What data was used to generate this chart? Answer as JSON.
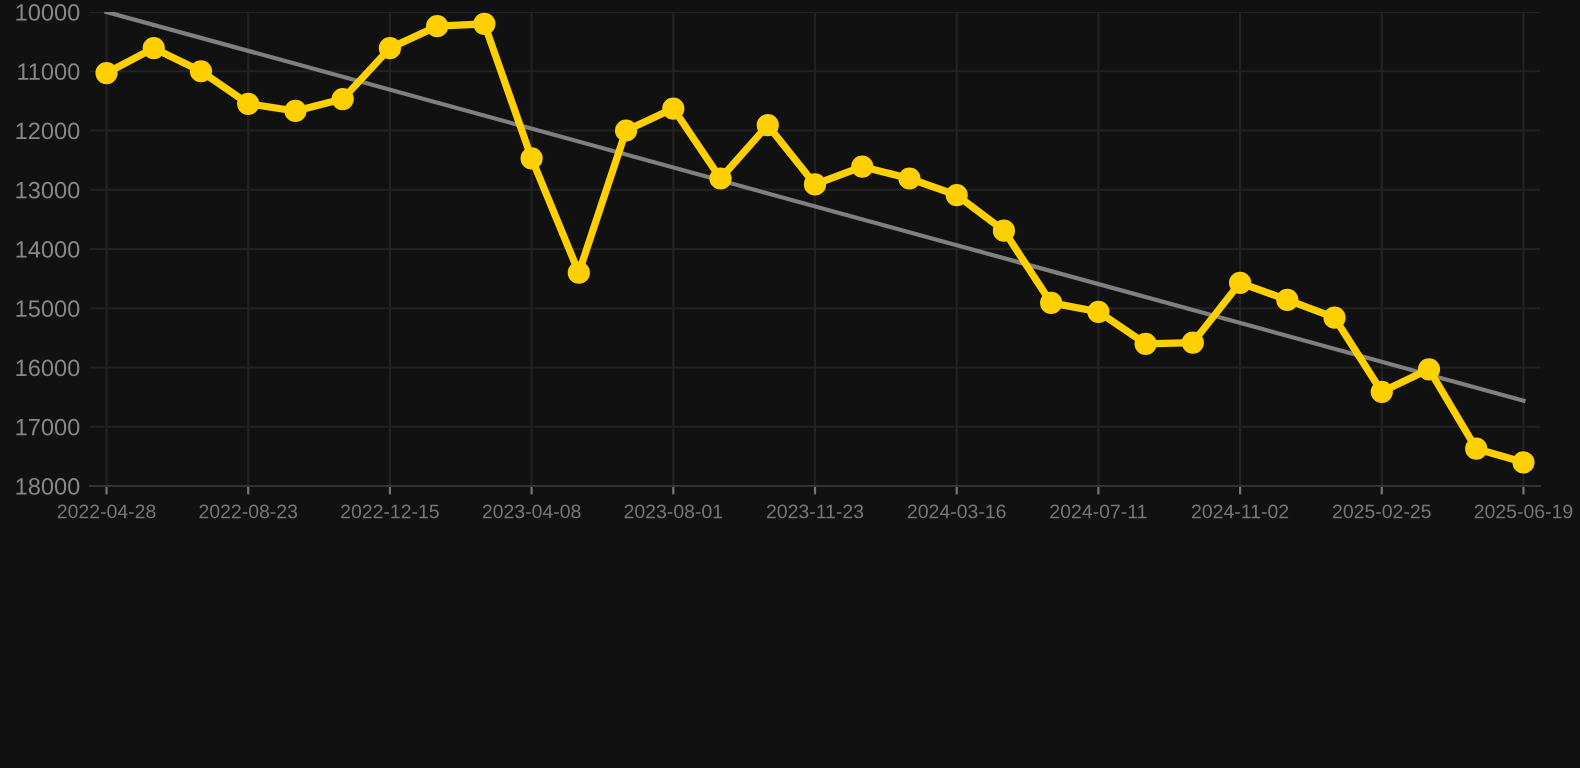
{
  "chart_data": {
    "type": "line",
    "categories": [
      "2022-04-28",
      null,
      null,
      "2022-08-23",
      null,
      null,
      "2022-12-15",
      null,
      null,
      "2023-04-08",
      null,
      null,
      "2023-08-01",
      null,
      null,
      "2023-11-23",
      null,
      null,
      "2024-03-16",
      null,
      null,
      "2024-07-11",
      null,
      null,
      "2024-11-02",
      null,
      null,
      "2025-02-25",
      null,
      null,
      "2025-06-19"
    ],
    "series": [
      {
        "color": "#ffd000",
        "marker": "circle",
        "values": [
          11030,
          10610,
          11000,
          11550,
          11670,
          11470,
          10610,
          10240,
          10200,
          12470,
          14400,
          12000,
          11630,
          12810,
          11910,
          12910,
          12610,
          12810,
          13090,
          13690,
          14910,
          15060,
          15600,
          15580,
          14570,
          14860,
          15160,
          16410,
          16030,
          17370,
          17600
        ]
      },
      {
        "type": "line",
        "color": "#808080",
        "marker": "none",
        "values": [
          10000,
          null,
          null,
          null,
          null,
          null,
          null,
          null,
          null,
          null,
          null,
          null,
          null,
          null,
          null,
          null,
          null,
          null,
          null,
          null,
          null,
          null,
          null,
          null,
          null,
          null,
          null,
          null,
          null,
          null,
          16560
        ]
      }
    ],
    "ylim": [
      18000,
      10000
    ],
    "yticks": [
      10000,
      11000,
      12000,
      13000,
      14000,
      15000,
      16000,
      17000,
      18000
    ],
    "grid": true,
    "line_style": "solid"
  }
}
